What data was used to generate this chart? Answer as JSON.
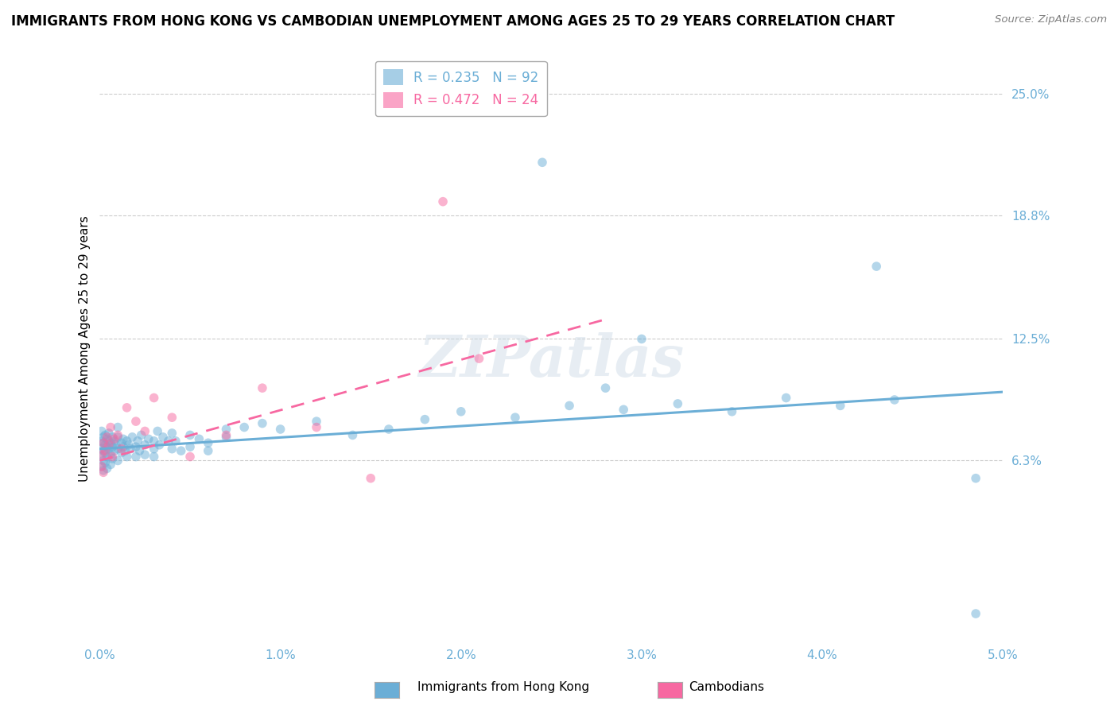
{
  "title": "IMMIGRANTS FROM HONG KONG VS CAMBODIAN UNEMPLOYMENT AMONG AGES 25 TO 29 YEARS CORRELATION CHART",
  "source": "Source: ZipAtlas.com",
  "ylabel": "Unemployment Among Ages 25 to 29 years",
  "xlim": [
    0.0,
    0.05
  ],
  "ylim": [
    -0.03,
    0.27
  ],
  "ytick_vals": [
    0.063,
    0.125,
    0.188,
    0.25
  ],
  "ytick_labels": [
    "6.3%",
    "12.5%",
    "18.8%",
    "25.0%"
  ],
  "xtick_vals": [
    0.0,
    0.01,
    0.02,
    0.03,
    0.04,
    0.05
  ],
  "xtick_labels": [
    "0.0%",
    "1.0%",
    "2.0%",
    "3.0%",
    "4.0%",
    "5.0%"
  ],
  "legend_line1": "R = 0.235   N = 92",
  "legend_line2": "R = 0.472   N = 24",
  "blue_color": "#6baed6",
  "pink_color": "#f768a1",
  "background_color": "#ffffff",
  "grid_color": "#cccccc",
  "title_fontsize": 12,
  "axis_label_fontsize": 11,
  "tick_label_fontsize": 11,
  "watermark": "ZIPatlas",
  "blue_trend_x": [
    0.0,
    0.05
  ],
  "blue_trend_y": [
    0.069,
    0.098
  ],
  "pink_trend_x": [
    0.0,
    0.028
  ],
  "pink_trend_y": [
    0.063,
    0.135
  ],
  "blue_scatter_x": [
    0.0001,
    0.0001,
    0.0001,
    0.0001,
    0.0001,
    0.0002,
    0.0002,
    0.0002,
    0.0002,
    0.0002,
    0.0003,
    0.0003,
    0.0003,
    0.0003,
    0.0004,
    0.0004,
    0.0004,
    0.0004,
    0.0005,
    0.0005,
    0.0005,
    0.0006,
    0.0006,
    0.0006,
    0.0007,
    0.0007,
    0.0007,
    0.0008,
    0.0008,
    0.0009,
    0.001,
    0.001,
    0.001,
    0.001,
    0.0012,
    0.0012,
    0.0013,
    0.0013,
    0.0014,
    0.0015,
    0.0015,
    0.0016,
    0.0017,
    0.0018,
    0.002,
    0.002,
    0.0021,
    0.0022,
    0.0023,
    0.0025,
    0.0025,
    0.0027,
    0.003,
    0.003,
    0.003,
    0.0032,
    0.0033,
    0.0035,
    0.0038,
    0.004,
    0.004,
    0.0042,
    0.0045,
    0.005,
    0.005,
    0.0055,
    0.006,
    0.006,
    0.007,
    0.007,
    0.008,
    0.009,
    0.01,
    0.012,
    0.014,
    0.016,
    0.018,
    0.02,
    0.023,
    0.026,
    0.029,
    0.032,
    0.035,
    0.038,
    0.041,
    0.044,
    0.0245,
    0.043,
    0.0485,
    0.0485,
    0.028,
    0.03
  ],
  "blue_scatter_y": [
    0.069,
    0.073,
    0.078,
    0.065,
    0.06,
    0.072,
    0.068,
    0.075,
    0.063,
    0.058,
    0.071,
    0.067,
    0.076,
    0.062,
    0.07,
    0.074,
    0.065,
    0.059,
    0.073,
    0.069,
    0.077,
    0.066,
    0.072,
    0.061,
    0.075,
    0.07,
    0.064,
    0.073,
    0.068,
    0.071,
    0.069,
    0.075,
    0.063,
    0.08,
    0.072,
    0.067,
    0.07,
    0.074,
    0.068,
    0.073,
    0.065,
    0.071,
    0.069,
    0.075,
    0.07,
    0.065,
    0.073,
    0.068,
    0.076,
    0.071,
    0.066,
    0.074,
    0.069,
    0.073,
    0.065,
    0.078,
    0.071,
    0.075,
    0.073,
    0.077,
    0.069,
    0.073,
    0.068,
    0.076,
    0.07,
    0.074,
    0.072,
    0.068,
    0.075,
    0.079,
    0.08,
    0.082,
    0.079,
    0.083,
    0.076,
    0.079,
    0.084,
    0.088,
    0.085,
    0.091,
    0.089,
    0.092,
    0.088,
    0.095,
    0.091,
    0.094,
    0.215,
    0.162,
    0.054,
    -0.015,
    0.1,
    0.125
  ],
  "pink_scatter_x": [
    0.0001,
    0.0001,
    0.0002,
    0.0002,
    0.0003,
    0.0004,
    0.0005,
    0.0006,
    0.0007,
    0.0008,
    0.001,
    0.0012,
    0.0015,
    0.002,
    0.0025,
    0.003,
    0.004,
    0.005,
    0.007,
    0.009,
    0.012,
    0.015,
    0.019,
    0.021
  ],
  "pink_scatter_y": [
    0.066,
    0.06,
    0.072,
    0.057,
    0.068,
    0.075,
    0.071,
    0.08,
    0.065,
    0.074,
    0.076,
    0.069,
    0.09,
    0.083,
    0.078,
    0.095,
    0.085,
    0.065,
    0.076,
    0.1,
    0.08,
    0.054,
    0.195,
    0.115
  ]
}
